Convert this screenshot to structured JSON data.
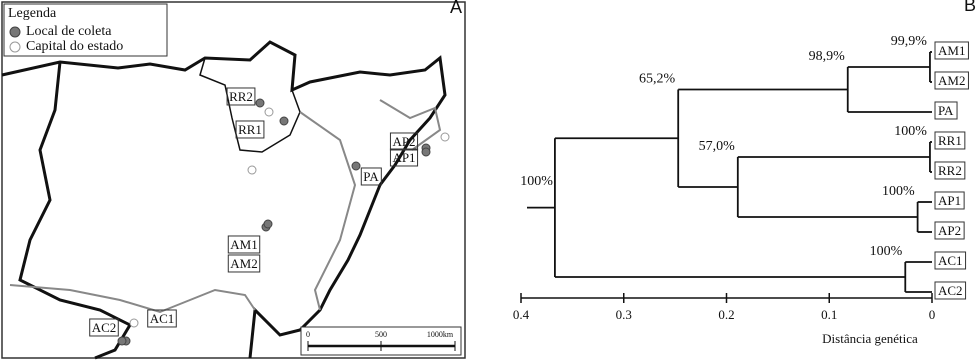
{
  "panels": {
    "a": "A",
    "b": "B"
  },
  "map": {
    "legend": {
      "title": "Legenda",
      "items": [
        "Local de coleta",
        "Capital do estado"
      ]
    },
    "sites": [
      "RR2",
      "RR1",
      "AP2",
      "AP1",
      "PA",
      "AM1",
      "AM2",
      "AC1",
      "AC2"
    ],
    "scale": {
      "ticks": [
        "0",
        "500",
        "1000km"
      ]
    }
  },
  "dendrogram": {
    "axis_title": "Distância genética",
    "xlim": [
      0.4,
      0
    ],
    "xticks": [
      0.4,
      0.3,
      0.2,
      0.1,
      0
    ],
    "tree": {
      "support": "100%",
      "distance": 0.367,
      "children": [
        {
          "support": "65,2%",
          "distance": 0.247,
          "children": [
            {
              "support": "98,9%",
              "distance": 0.082,
              "children": [
                {
                  "support": "99,9%",
                  "distance": 0.002,
                  "children": [
                    {
                      "label": "AM1"
                    },
                    {
                      "label": "AM2"
                    }
                  ]
                },
                {
                  "label": "PA"
                }
              ]
            },
            {
              "support": "57,0%",
              "distance": 0.189,
              "children": [
                {
                  "support": "100%",
                  "distance": 0.002,
                  "children": [
                    {
                      "label": "RR1"
                    },
                    {
                      "label": "RR2"
                    }
                  ]
                },
                {
                  "support": "100%",
                  "distance": 0.014,
                  "children": [
                    {
                      "label": "AP1"
                    },
                    {
                      "label": "AP2"
                    }
                  ]
                }
              ]
            }
          ]
        },
        {
          "support": "100%",
          "distance": 0.026,
          "children": [
            {
              "label": "AC1"
            },
            {
              "label": "AC2"
            }
          ]
        }
      ]
    }
  }
}
